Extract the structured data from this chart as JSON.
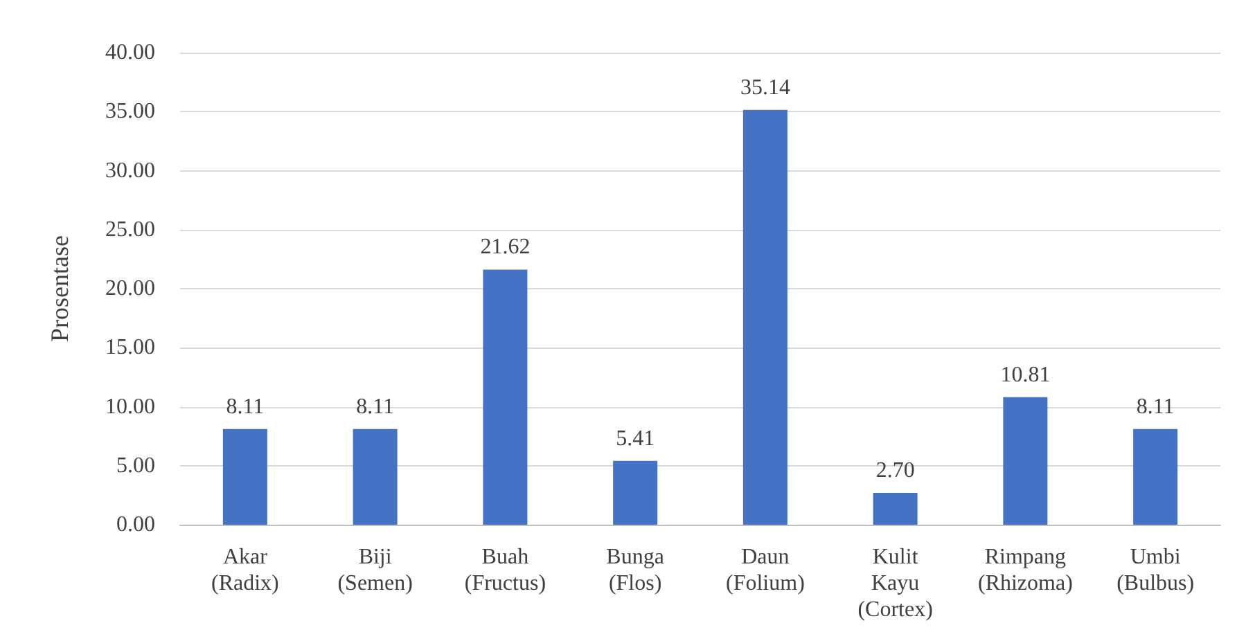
{
  "chart_data": {
    "type": "bar",
    "ylabel": "Prosentase",
    "categories": [
      "Akar\n(Radix)",
      "Biji\n(Semen)",
      "Buah\n(Fructus)",
      "Bunga\n(Flos)",
      "Daun\n(Folium)",
      "Kulit\nKayu\n(Cortex)",
      "Rimpang\n(Rhizoma)",
      "Umbi\n(Bulbus)"
    ],
    "values": [
      8.11,
      8.11,
      21.62,
      5.41,
      35.14,
      2.7,
      10.81,
      8.11
    ],
    "value_labels": [
      "8.11",
      "8.11",
      "21.62",
      "5.41",
      "35.14",
      "2.70",
      "10.81",
      "8.11"
    ],
    "color": "#4472c4",
    "ylim": [
      0,
      40
    ],
    "yticks": [
      {
        "value": 0,
        "label": "0.00"
      },
      {
        "value": 5,
        "label": "5.00"
      },
      {
        "value": 10,
        "label": "10.00"
      },
      {
        "value": 15,
        "label": "15.00"
      },
      {
        "value": 20,
        "label": "20.00"
      },
      {
        "value": 25,
        "label": "25.00"
      },
      {
        "value": 30,
        "label": "30.00"
      },
      {
        "value": 35,
        "label": "35.00"
      },
      {
        "value": 40,
        "label": "40.00"
      }
    ],
    "grid": "y"
  }
}
